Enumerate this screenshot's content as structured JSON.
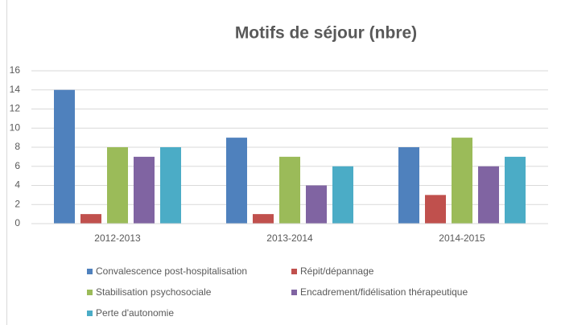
{
  "chart_data": {
    "type": "bar",
    "title": "Motifs de séjour (nbre)",
    "categories": [
      "2012-2013",
      "2013-2014",
      "2014-2015"
    ],
    "series": [
      {
        "name": "Convalescence post-hospitalisation",
        "color": "#4f81bd",
        "values": [
          14,
          9,
          8
        ]
      },
      {
        "name": "Répit/dépannage",
        "color": "#c0504d",
        "values": [
          1,
          1,
          3
        ]
      },
      {
        "name": "Stabilisation psychosociale",
        "color": "#9bbb59",
        "values": [
          8,
          7,
          9
        ]
      },
      {
        "name": "Encadrement/fidélisation thérapeutique",
        "color": "#8064a2",
        "values": [
          7,
          4,
          6
        ]
      },
      {
        "name": "Perte d'autonomie",
        "color": "#4bacc6",
        "values": [
          8,
          6,
          7
        ]
      }
    ],
    "ylim": [
      0,
      16
    ],
    "yticks": [
      0,
      2,
      4,
      6,
      8,
      10,
      12,
      14,
      16
    ],
    "grid": true
  }
}
